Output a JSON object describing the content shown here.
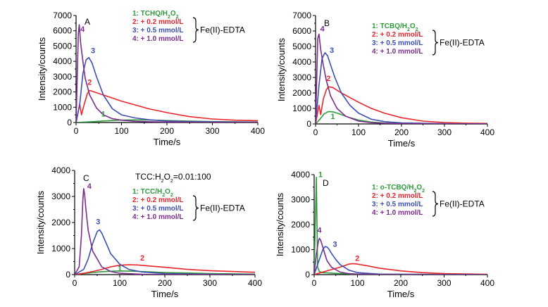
{
  "chart_data": [
    {
      "type": "line",
      "panel": "A",
      "xlabel": "Time/s",
      "ylabel": "Intensity/counts",
      "xlim": [
        0,
        400
      ],
      "ylim": [
        0,
        7000
      ],
      "xticks": [
        0,
        100,
        200,
        300,
        400
      ],
      "yticks": [
        0,
        1000,
        2000,
        3000,
        4000,
        5000,
        6000,
        7000
      ],
      "legend": [
        "1: TCHQ/H2O2",
        "2: + 0.2 mmol/L",
        "3: + 0.5 mmol/L",
        "4: + 1.0 mmol/L"
      ],
      "legend_group": "Fe(II)-EDTA",
      "series": [
        {
          "name": "1",
          "color": "#2e9a3c",
          "x": [
            0,
            20,
            40,
            60,
            80,
            100,
            130,
            160,
            200,
            250,
            300,
            400
          ],
          "y": [
            0,
            30,
            60,
            100,
            130,
            160,
            170,
            160,
            130,
            90,
            60,
            30
          ]
        },
        {
          "name": "2",
          "color": "#e8262b",
          "x": [
            0,
            8,
            12,
            18,
            25,
            30,
            40,
            60,
            80,
            100,
            130,
            160,
            200,
            250,
            300,
            350,
            400
          ],
          "y": [
            0,
            1200,
            500,
            1200,
            1900,
            2100,
            2000,
            1800,
            1600,
            1400,
            1150,
            900,
            650,
            380,
            230,
            150,
            120
          ]
        },
        {
          "name": "3",
          "color": "#3c4fb0",
          "x": [
            0,
            8,
            15,
            22,
            28,
            35,
            45,
            60,
            80,
            100,
            130,
            160,
            200,
            250,
            300,
            400
          ],
          "y": [
            0,
            1200,
            3200,
            4100,
            4250,
            3900,
            3000,
            1800,
            900,
            500,
            300,
            180,
            100,
            60,
            40,
            20
          ]
        },
        {
          "name": "4",
          "color": "#7b2d8e",
          "x": [
            0,
            5,
            7,
            10,
            15,
            20,
            30,
            45,
            60,
            80,
            100,
            130,
            160,
            200,
            300,
            400
          ],
          "y": [
            0,
            5800,
            6400,
            5200,
            4000,
            2900,
            1800,
            950,
            500,
            250,
            150,
            80,
            50,
            30,
            10,
            5
          ]
        }
      ]
    },
    {
      "type": "line",
      "panel": "B",
      "xlabel": "Time/s",
      "ylabel": "Intensity/counts",
      "xlim": [
        0,
        400
      ],
      "ylim": [
        0,
        7000
      ],
      "xticks": [
        0,
        100,
        200,
        300,
        400
      ],
      "yticks": [
        0,
        1000,
        2000,
        3000,
        4000,
        5000,
        6000,
        7000
      ],
      "legend": [
        "1: TCBQ/H2O2",
        "2: + 0.2 mmol/L",
        "3: + 0.5 mmol/L",
        "4: + 1.0 mmol/L"
      ],
      "legend_group": "Fe(II)-EDTA",
      "series": [
        {
          "name": "1",
          "color": "#2e9a3c",
          "x": [
            0,
            10,
            20,
            30,
            40,
            50,
            60,
            80,
            100,
            130,
            160,
            200,
            300,
            400
          ],
          "y": [
            0,
            300,
            650,
            800,
            780,
            700,
            600,
            400,
            250,
            120,
            60,
            30,
            10,
            5
          ]
        },
        {
          "name": "2",
          "color": "#e8262b",
          "x": [
            0,
            8,
            12,
            18,
            25,
            30,
            40,
            60,
            80,
            100,
            130,
            160,
            200,
            250,
            300,
            350,
            400
          ],
          "y": [
            0,
            1200,
            600,
            1600,
            2200,
            2400,
            2350,
            2000,
            1700,
            1400,
            1000,
            700,
            400,
            180,
            90,
            50,
            30
          ]
        },
        {
          "name": "3",
          "color": "#3c4fb0",
          "x": [
            0,
            8,
            15,
            22,
            28,
            35,
            45,
            60,
            80,
            100,
            130,
            160,
            200,
            300,
            400
          ],
          "y": [
            0,
            2500,
            4200,
            4600,
            4400,
            3800,
            3000,
            2000,
            1200,
            700,
            300,
            150,
            70,
            20,
            5
          ]
        },
        {
          "name": "4",
          "color": "#7b2d8e",
          "x": [
            0,
            5,
            8,
            12,
            18,
            25,
            35,
            50,
            70,
            100,
            130,
            160,
            200,
            300,
            400
          ],
          "y": [
            0,
            5500,
            5800,
            4800,
            3800,
            2800,
            1800,
            1000,
            500,
            180,
            80,
            40,
            20,
            5,
            0
          ]
        }
      ]
    },
    {
      "type": "line",
      "panel": "C",
      "xlabel": "Time/s",
      "ylabel": "Intensity/counts",
      "xlim": [
        0,
        400
      ],
      "ylim": [
        0,
        4000
      ],
      "xticks": [
        0,
        100,
        200,
        300,
        400
      ],
      "yticks": [
        0,
        1000,
        2000,
        3000,
        4000
      ],
      "annotation": "TCC:H2O2=0.01:100",
      "legend": [
        "1: TCC/H2O2",
        "2: + 0.2 mmol/L",
        "3: + 0.5 mmol/L",
        "4: + 1.0 mmol/L"
      ],
      "legend_group": "Fe(II)-EDTA",
      "series": [
        {
          "name": "1",
          "color": "#2e9a3c",
          "x": [
            0,
            20,
            40,
            60,
            80,
            100,
            130,
            160,
            200,
            300,
            400
          ],
          "y": [
            0,
            40,
            80,
            110,
            130,
            140,
            130,
            110,
            80,
            40,
            20
          ]
        },
        {
          "name": "2",
          "color": "#e8262b",
          "x": [
            0,
            20,
            40,
            60,
            80,
            100,
            120,
            140,
            160,
            200,
            250,
            300,
            350,
            400
          ],
          "y": [
            0,
            50,
            120,
            200,
            300,
            360,
            380,
            370,
            340,
            280,
            200,
            150,
            120,
            90
          ]
        },
        {
          "name": "3",
          "color": "#3c4fb0",
          "x": [
            0,
            20,
            30,
            40,
            50,
            55,
            60,
            70,
            80,
            100,
            120,
            150,
            200,
            300,
            400
          ],
          "y": [
            0,
            200,
            600,
            1200,
            1650,
            1720,
            1600,
            1200,
            800,
            400,
            200,
            100,
            40,
            10,
            5
          ]
        },
        {
          "name": "4",
          "color": "#7b2d8e",
          "x": [
            0,
            10,
            15,
            18,
            20,
            22,
            25,
            30,
            40,
            60,
            80,
            100,
            150,
            200,
            400
          ],
          "y": [
            0,
            300,
            1500,
            2800,
            3300,
            3100,
            2500,
            1700,
            900,
            300,
            120,
            50,
            10,
            5,
            0
          ]
        }
      ]
    },
    {
      "type": "line",
      "panel": "D",
      "xlabel": "Time/s",
      "ylabel": "Intensity/counts",
      "xlim": [
        0,
        400
      ],
      "ylim": [
        0,
        4000
      ],
      "xticks": [
        0,
        100,
        200,
        300,
        400
      ],
      "yticks": [
        0,
        1000,
        2000,
        3000,
        4000
      ],
      "legend": [
        "1: o-TCBQ/H2O2",
        "2: + 0.2 mmol/L",
        "3: + 0.5 mmol/L",
        "4: + 1.0 mmol/L"
      ],
      "legend_group": "Fe(II)-EDTA",
      "series": [
        {
          "name": "1",
          "color": "#2e9a3c",
          "x": [
            0,
            5,
            8,
            12,
            20,
            40,
            60,
            100,
            200,
            400
          ],
          "y": [
            0,
            3900,
            300,
            120,
            80,
            60,
            40,
            20,
            10,
            5
          ]
        },
        {
          "name": "2",
          "color": "#e8262b",
          "x": [
            0,
            20,
            40,
            60,
            80,
            90,
            100,
            120,
            150,
            200,
            250,
            300,
            400
          ],
          "y": [
            0,
            100,
            200,
            300,
            420,
            440,
            420,
            360,
            260,
            150,
            80,
            40,
            10
          ]
        },
        {
          "name": "3",
          "color": "#3c4fb0",
          "x": [
            0,
            10,
            20,
            25,
            30,
            35,
            40,
            50,
            60,
            80,
            100,
            150,
            200,
            300,
            400
          ],
          "y": [
            0,
            500,
            1000,
            1120,
            1100,
            1000,
            850,
            600,
            400,
            180,
            80,
            20,
            10,
            5,
            0
          ]
        },
        {
          "name": "4",
          "color": "#7b2d8e",
          "x": [
            0,
            5,
            10,
            12,
            15,
            20,
            25,
            30,
            40,
            60,
            80,
            100,
            150,
            200,
            400
          ],
          "y": [
            0,
            800,
            1350,
            1450,
            1380,
            1100,
            800,
            550,
            300,
            100,
            40,
            20,
            5,
            0,
            0
          ]
        }
      ]
    }
  ],
  "labels": {
    "edta_text": "Fe(II)-EDTA"
  }
}
